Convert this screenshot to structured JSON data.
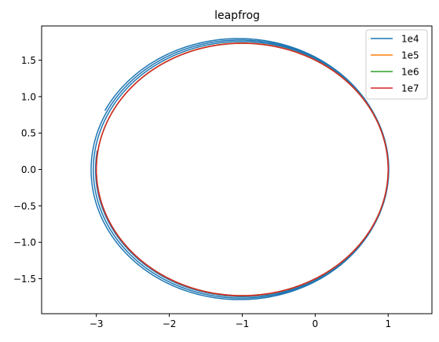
{
  "chart_data": {
    "type": "line",
    "title": "leapfrog",
    "xlabel": "",
    "ylabel": "",
    "xlim": [
      -3.75,
      1.6
    ],
    "ylim": [
      -1.98,
      1.97
    ],
    "xticks": [
      -3,
      -2,
      -1,
      0,
      1
    ],
    "xtick_labels": [
      "−3",
      "−2",
      "−1",
      "0",
      "1"
    ],
    "yticks": [
      -1.5,
      -1.0,
      -0.5,
      0.0,
      0.5,
      1.0,
      1.5
    ],
    "ytick_labels": [
      "−1.5",
      "−1.0",
      "−0.5",
      "0.0",
      "0.5",
      "1.0",
      "1.5"
    ],
    "grid": false,
    "legend_position": "top-right",
    "series": [
      {
        "name": "1e4",
        "color": "#1f77b4",
        "shape": "spiral",
        "center_x": [
          -1.05,
          -1.0
        ],
        "semi_axis_x": [
          2.05,
          2.01
        ],
        "semi_axis_y": [
          1.8,
          1.74
        ],
        "start_point": [
          -3.0,
          0.86
        ],
        "turns": 2.95
      },
      {
        "name": "1e5",
        "color": "#ff7f0e",
        "shape": "ellipse",
        "center_x": -1.0,
        "semi_axis_x": 2.0,
        "semi_axis_y": 1.735
      },
      {
        "name": "1e6",
        "color": "#2ca02c",
        "shape": "ellipse",
        "center_x": -1.0,
        "semi_axis_x": 2.0,
        "semi_axis_y": 1.732
      },
      {
        "name": "1e7",
        "color": "#d62728",
        "shape": "ellipse",
        "center_x": -1.0,
        "semi_axis_x": 2.0,
        "semi_axis_y": 1.732
      }
    ]
  }
}
